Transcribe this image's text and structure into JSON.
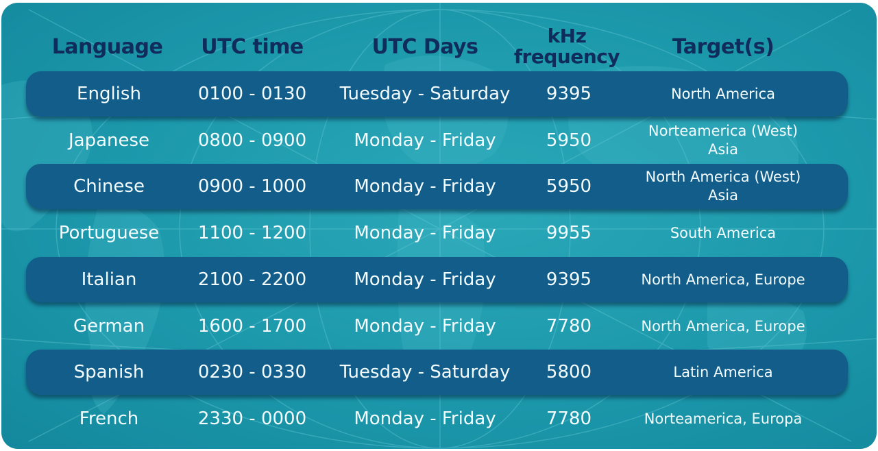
{
  "colors": {
    "background": "#1c98ab",
    "band": "#135d8a",
    "header_text": "#0f2c5c",
    "cell_text": "#f2fbfd"
  },
  "header": {
    "language": "Language",
    "utc_time": "UTC time",
    "utc_days": "UTC Days",
    "frequency_line1": "kHz",
    "frequency_line2": "frequency",
    "targets": "Target(s)"
  },
  "rows": [
    {
      "language": "English",
      "time": "0100 - 0130",
      "days": "Tuesday - Saturday",
      "frequency": "9395",
      "target1": "North America",
      "target2": "",
      "highlighted": true
    },
    {
      "language": "Japanese",
      "time": "0800 - 0900",
      "days": "Monday - Friday",
      "frequency": "5950",
      "target1": "Norteamerica (West)",
      "target2": "Asia",
      "highlighted": false
    },
    {
      "language": "Chinese",
      "time": "0900 - 1000",
      "days": "Monday - Friday",
      "frequency": "5950",
      "target1": "North America (West)",
      "target2": "Asia",
      "highlighted": true
    },
    {
      "language": "Portuguese",
      "time": "1100 - 1200",
      "days": "Monday - Friday",
      "frequency": "9955",
      "target1": "South America",
      "target2": "",
      "highlighted": false
    },
    {
      "language": "Italian",
      "time": "2100 - 2200",
      "days": "Monday - Friday",
      "frequency": "9395",
      "target1": "North America, Europe",
      "target2": "",
      "highlighted": true
    },
    {
      "language": "German",
      "time": "1600 - 1700",
      "days": "Monday - Friday",
      "frequency": "7780",
      "target1": "North America, Europe",
      "target2": "",
      "highlighted": false
    },
    {
      "language": "Spanish",
      "time": "0230 - 0330",
      "days": "Tuesday - Saturday",
      "frequency": "5800",
      "target1": "Latin America",
      "target2": "",
      "highlighted": true
    },
    {
      "language": "French",
      "time": "2330 - 0000",
      "days": "Monday - Friday",
      "frequency": "7780",
      "target1": "Norteamerica, Europa",
      "target2": "",
      "highlighted": false
    }
  ]
}
